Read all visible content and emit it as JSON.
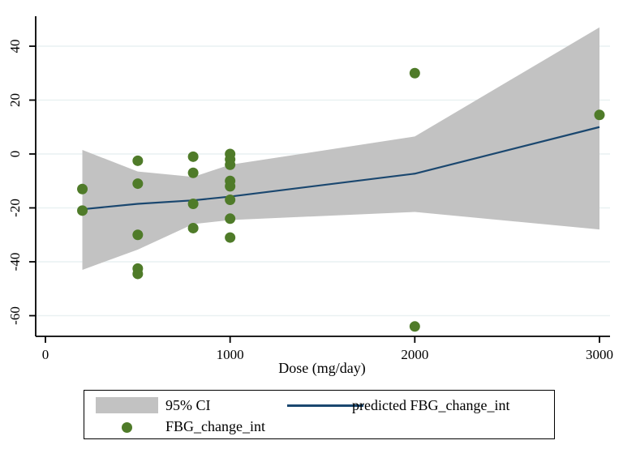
{
  "colors": {
    "marker": "#4f7b29",
    "line": "#1a476f",
    "ci_band": "#c2c2c2",
    "grid": "#e9f1f2",
    "axis": "#000000",
    "text": "#000000",
    "background": "#ffffff",
    "legend_border": "#000000"
  },
  "chart_data": {
    "type": "scatter",
    "title": "",
    "xlabel": "Dose (mg/day)",
    "ylabel": "",
    "xlim": [
      -160,
      3100
    ],
    "ylim": [
      -68,
      51
    ],
    "x_ticks": [
      0,
      1000,
      2000,
      3000
    ],
    "y_ticks": [
      40,
      20,
      0,
      -20,
      -40,
      -60
    ],
    "grid": "horizontal-only",
    "legend_position": "bottom-box",
    "series": [
      {
        "name": "95% CI",
        "type": "area",
        "upper": [
          [
            200,
            1.5
          ],
          [
            500,
            -6.5
          ],
          [
            800,
            -8.5
          ],
          [
            1000,
            -4
          ],
          [
            2000,
            6.5
          ],
          [
            3000,
            47
          ]
        ],
        "lower": [
          [
            200,
            -43
          ],
          [
            500,
            -35.5
          ],
          [
            800,
            -26
          ],
          [
            1000,
            -24.5
          ],
          [
            2000,
            -21.5
          ],
          [
            3000,
            -28
          ]
        ]
      },
      {
        "name": "predicted FBG_change_int",
        "type": "line",
        "points": [
          [
            200,
            -20.5
          ],
          [
            500,
            -18.5
          ],
          [
            800,
            -17.2
          ],
          [
            1000,
            -15.8
          ],
          [
            2000,
            -7.3
          ],
          [
            3000,
            10
          ]
        ]
      },
      {
        "name": "FBG_change_int",
        "type": "scatter",
        "points": [
          [
            200,
            -13
          ],
          [
            200,
            -21
          ],
          [
            500,
            -2.5
          ],
          [
            500,
            -11
          ],
          [
            500,
            -30
          ],
          [
            500,
            -42.5
          ],
          [
            500,
            -44.5
          ],
          [
            800,
            -1
          ],
          [
            800,
            -7
          ],
          [
            800,
            -18.5
          ],
          [
            800,
            -27.5
          ],
          [
            1000,
            0
          ],
          [
            1000,
            -2
          ],
          [
            1000,
            -4
          ],
          [
            1000,
            -10
          ],
          [
            1000,
            -12
          ],
          [
            1000,
            -17
          ],
          [
            1000,
            -24
          ],
          [
            1000,
            -31
          ],
          [
            2000,
            30
          ],
          [
            2000,
            -64
          ],
          [
            3000,
            14.5
          ]
        ]
      }
    ],
    "legend": {
      "items": [
        {
          "swatch": "area",
          "label": "95% CI"
        },
        {
          "swatch": "marker",
          "label": "FBG_change_int"
        },
        {
          "swatch": "line",
          "label": "predicted FBG_change_int"
        }
      ]
    }
  }
}
